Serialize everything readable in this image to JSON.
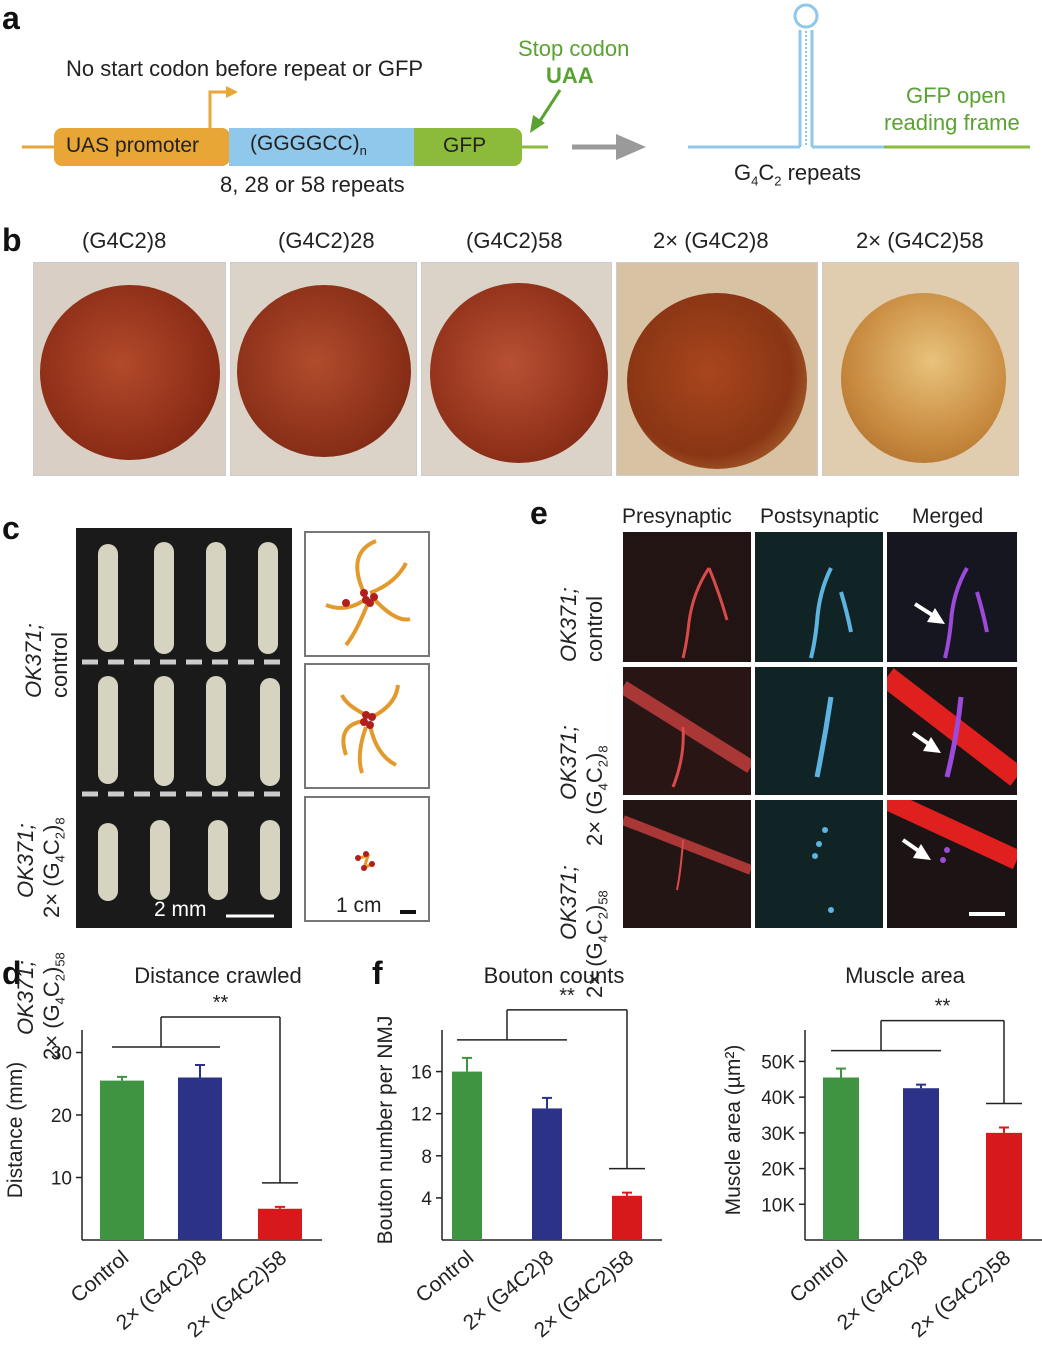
{
  "panel_labels": {
    "a": "a",
    "b": "b",
    "c": "c",
    "d": "d",
    "e": "e",
    "f": "f"
  },
  "a": {
    "no_start": "No start codon before repeat or GFP",
    "stop_line1": "Stop codon",
    "stop_line2": "UAA",
    "uas": "UAS promoter",
    "repeat_box": "(GGGGCC)",
    "repeat_sub": "n",
    "gfp": "GFP",
    "repeat_counts": "8, 28 or 58 repeats",
    "gfp_orf_line1": "GFP open",
    "gfp_orf_line2": "reading frame",
    "g4c2_repeats": "G4C2 repeats",
    "colors": {
      "uas": "#e8a637",
      "repeat": "#8fc8ea",
      "gfp": "#8cbb3c",
      "stop_text": "#5aa231",
      "arrow": "#9a9a9a"
    }
  },
  "b": {
    "titles": [
      "(G4C2)8",
      "(G4C2)28",
      "(G4C2)58",
      "2× (G4C2)8",
      "2× (G4C2)58"
    ]
  },
  "c": {
    "rows": [
      "OK371; control",
      "OK371; 2× (G4C2)8",
      "OK371; 2× (G4C2)58"
    ],
    "scale_larvae": "2 mm",
    "scale_tracks": "1 cm"
  },
  "e": {
    "columns": [
      "Presynaptic",
      "Postsynaptic",
      "Merged"
    ],
    "rows": [
      "OK371; control",
      "OK371; 2× (G4C2)8",
      "OK371; 2× (G4C2)58"
    ]
  },
  "chart_data": [
    {
      "type": "bar",
      "title": "Distance crawled",
      "ylabel": "Distance (mm)",
      "categories": [
        "Control",
        "2× (G4C2)8",
        "2× (G4C2)58"
      ],
      "values": [
        25.5,
        26,
        5
      ],
      "errors": [
        0.6,
        2,
        0.3
      ],
      "ylim": [
        0,
        32
      ],
      "yticks": [
        10,
        20,
        30
      ],
      "colors": [
        "#3e9440",
        "#2b3288",
        "#d7191c"
      ],
      "significance": "**"
    },
    {
      "type": "bar",
      "title": "Bouton counts",
      "ylabel": "Bouton number per NMJ",
      "categories": [
        "Control",
        "2× (G4C2)8",
        "2× (G4C2)58"
      ],
      "values": [
        16,
        12.5,
        4.2
      ],
      "errors": [
        1.3,
        1,
        0.3
      ],
      "ylim": [
        0,
        19
      ],
      "yticks": [
        4,
        8,
        12,
        16
      ],
      "colors": [
        "#3e9440",
        "#2b3288",
        "#d7191c"
      ],
      "significance": "**"
    },
    {
      "type": "bar",
      "title": "Muscle area",
      "ylabel": "Muscle area (µm²)",
      "categories": [
        "Control",
        "2× (G4C2)8",
        "2× (G4C2)58"
      ],
      "values": [
        45500,
        42500,
        30000
      ],
      "errors": [
        2500,
        1000,
        1500
      ],
      "ylim": [
        0,
        56000
      ],
      "yticks": [
        10000,
        20000,
        30000,
        40000,
        50000
      ],
      "ytick_labels": [
        "10K",
        "20K",
        "30K",
        "40K",
        "50K"
      ],
      "colors": [
        "#3e9440",
        "#2b3288",
        "#d7191c"
      ],
      "significance": "**"
    }
  ]
}
